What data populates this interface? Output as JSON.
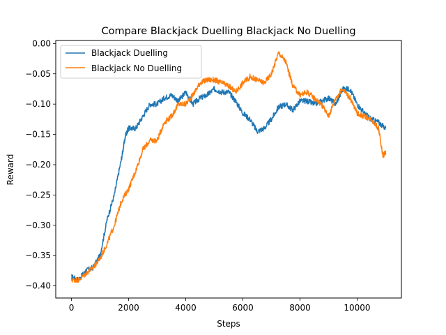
{
  "chart_data": {
    "type": "line",
    "title": "Compare Blackjack Duelling Blackjack No Duelling",
    "xlabel": "Steps",
    "ylabel": "Reward",
    "xlim": [
      -550,
      11550
    ],
    "ylim": [
      -0.42,
      0.005
    ],
    "xticks": [
      0,
      2000,
      4000,
      6000,
      8000,
      10000
    ],
    "xtick_labels": [
      "0",
      "2000",
      "4000",
      "6000",
      "8000",
      "10000"
    ],
    "yticks": [
      0.0,
      -0.05,
      -0.1,
      -0.15,
      -0.2,
      -0.25,
      -0.3,
      -0.35,
      -0.4
    ],
    "ytick_labels": [
      "0.00",
      "−0.05",
      "−0.10",
      "−0.15",
      "−0.20",
      "−0.25",
      "−0.30",
      "−0.35",
      "−0.40"
    ],
    "grid": false,
    "legend_position": "upper-left",
    "series": [
      {
        "name": "Blackjack Duelling",
        "color": "#1f77b4",
        "x": [
          0,
          250,
          500,
          750,
          1000,
          1250,
          1500,
          1750,
          1900,
          2000,
          2250,
          2500,
          2750,
          3000,
          3250,
          3500,
          3750,
          4000,
          4250,
          4500,
          4750,
          5000,
          5250,
          5500,
          5750,
          6000,
          6250,
          6500,
          6750,
          7000,
          7250,
          7500,
          7750,
          8000,
          8250,
          8500,
          8750,
          9000,
          9250,
          9500,
          9750,
          10000,
          10250,
          10500,
          10750,
          11000
        ],
        "y": [
          -0.385,
          -0.39,
          -0.375,
          -0.37,
          -0.35,
          -0.29,
          -0.25,
          -0.19,
          -0.15,
          -0.14,
          -0.14,
          -0.12,
          -0.1,
          -0.1,
          -0.09,
          -0.085,
          -0.095,
          -0.08,
          -0.1,
          -0.09,
          -0.085,
          -0.075,
          -0.08,
          -0.08,
          -0.095,
          -0.115,
          -0.125,
          -0.145,
          -0.14,
          -0.125,
          -0.105,
          -0.1,
          -0.11,
          -0.095,
          -0.095,
          -0.1,
          -0.095,
          -0.09,
          -0.1,
          -0.075,
          -0.075,
          -0.1,
          -0.115,
          -0.125,
          -0.13,
          -0.14
        ]
      },
      {
        "name": "Blackjack No Duelling",
        "color": "#ff7f0e",
        "x": [
          0,
          250,
          500,
          750,
          1000,
          1250,
          1500,
          1750,
          2000,
          2250,
          2500,
          2750,
          3000,
          3250,
          3500,
          3750,
          4000,
          4250,
          4500,
          4750,
          5000,
          5250,
          5500,
          5750,
          6000,
          6250,
          6500,
          6750,
          7000,
          7250,
          7500,
          7750,
          8000,
          8250,
          8500,
          8750,
          9000,
          9250,
          9500,
          9750,
          10000,
          10250,
          10500,
          10750,
          10900,
          11000
        ],
        "y": [
          -0.39,
          -0.39,
          -0.38,
          -0.37,
          -0.355,
          -0.33,
          -0.3,
          -0.26,
          -0.24,
          -0.21,
          -0.175,
          -0.16,
          -0.16,
          -0.13,
          -0.12,
          -0.1,
          -0.1,
          -0.085,
          -0.065,
          -0.06,
          -0.06,
          -0.065,
          -0.07,
          -0.08,
          -0.065,
          -0.055,
          -0.06,
          -0.065,
          -0.05,
          -0.015,
          -0.03,
          -0.07,
          -0.085,
          -0.08,
          -0.09,
          -0.1,
          -0.12,
          -0.09,
          -0.075,
          -0.09,
          -0.115,
          -0.12,
          -0.125,
          -0.14,
          -0.185,
          -0.18
        ]
      }
    ]
  }
}
